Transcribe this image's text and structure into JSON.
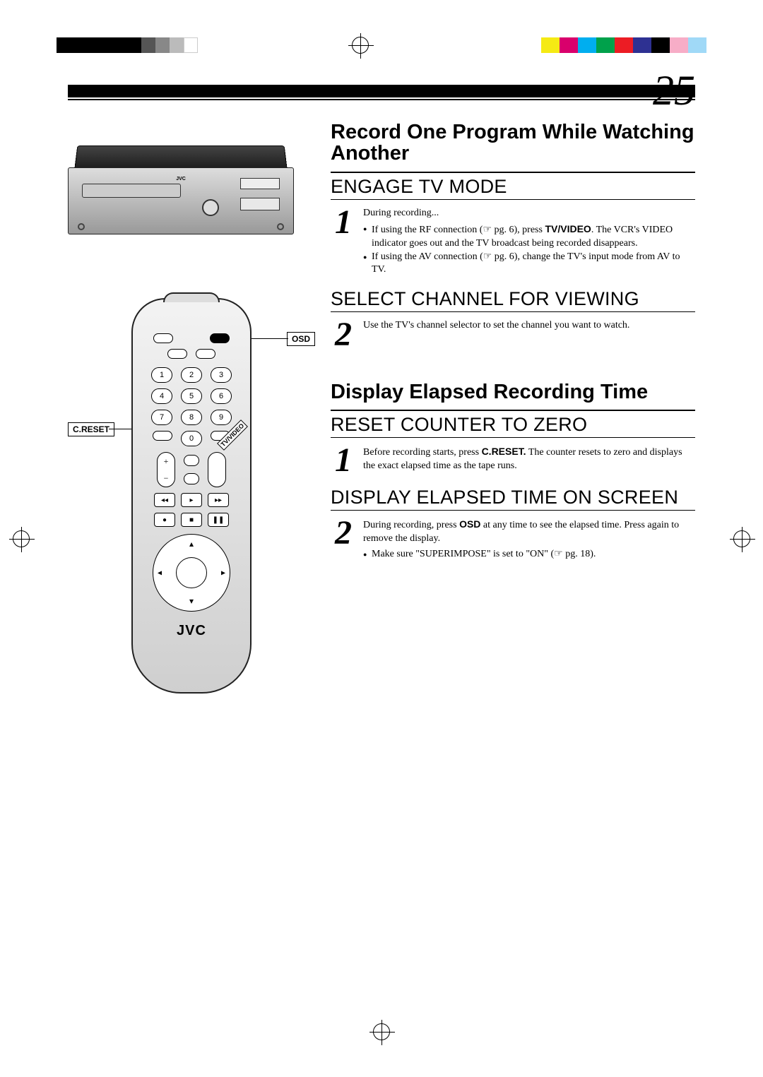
{
  "page_number": "25",
  "color_bar": [
    "#ffffff",
    "#f5ea14",
    "#d9006c",
    "#00aeef",
    "#00a14b",
    "#ec1c24",
    "#2e3192",
    "#000000",
    "#f7adc7",
    "#a0d9f7"
  ],
  "vcr": {
    "brand": "JVC"
  },
  "remote": {
    "brand": "JVC",
    "numbers": [
      "1",
      "2",
      "3",
      "4",
      "5",
      "6",
      "7",
      "8",
      "9",
      "0"
    ],
    "labels": {
      "osd": "OSD",
      "creset": "C.RESET",
      "tvvideo": "TV/VIDEO"
    }
  },
  "section1": {
    "title": "Record One Program While Watching Another",
    "steps": [
      {
        "num": "1",
        "heading": "ENGAGE TV MODE",
        "intro": "During recording...",
        "bullets": [
          "If using the RF connection (☞ pg. 6), press <b class='sans'>TV/VIDEO</b>. The VCR's VIDEO indicator goes out and the TV broadcast being recorded disappears.",
          "If using the AV connection (☞ pg. 6), change the TV's input mode from AV to TV."
        ]
      },
      {
        "num": "2",
        "heading": "SELECT CHANNEL FOR VIEWING",
        "intro": "Use the TV's channel selector to set the channel you want to watch.",
        "bullets": []
      }
    ]
  },
  "section2": {
    "title": "Display Elapsed Recording Time",
    "steps": [
      {
        "num": "1",
        "heading": "RESET COUNTER TO ZERO",
        "intro": "Before recording starts, press <b class='sans'>C.RESET.</b> The counter resets to zero and displays the exact elapsed time as the tape runs.",
        "bullets": []
      },
      {
        "num": "2",
        "heading": "DISPLAY ELAPSED TIME ON SCREEN",
        "intro": "During recording, press <b class='sans'>OSD</b> at any time to see the elapsed time. Press again to remove the display.",
        "bullets": [
          "Make sure \"SUPERIMPOSE\" is set to \"ON\" (☞ pg. 18)."
        ]
      }
    ]
  }
}
